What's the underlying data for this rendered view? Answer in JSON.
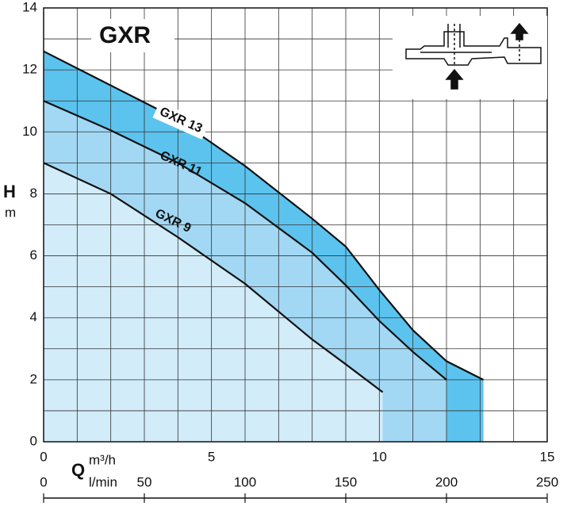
{
  "chart_data": {
    "type": "area-line",
    "title": "GXR",
    "y_label": "H",
    "y_unit": "m",
    "x_label": "Q",
    "x_unit": "m³/h",
    "x2_unit": "l/min",
    "xlim": [
      0,
      15
    ],
    "xticks": [
      0,
      5,
      10,
      15
    ],
    "x2lim": [
      0,
      250
    ],
    "x2ticks": [
      0,
      50,
      100,
      150,
      200,
      250
    ],
    "ylim": [
      0,
      14
    ],
    "yticks": [
      0,
      2,
      4,
      6,
      8,
      10,
      12,
      14
    ],
    "x_grid": [
      1,
      2,
      3,
      4,
      6,
      7,
      8,
      9,
      11,
      12,
      13,
      14
    ],
    "y_grid": [
      1,
      3,
      5,
      7,
      9,
      11,
      13
    ],
    "series": [
      {
        "name": "GXR 13",
        "color": "#5cc3ee",
        "x": [
          0,
          2,
          4,
          6,
          8,
          9,
          10,
          11,
          12,
          13.1
        ],
        "values": [
          12.6,
          11.5,
          10.4,
          8.9,
          7.2,
          6.3,
          4.9,
          3.6,
          2.6,
          2.0
        ]
      },
      {
        "name": "GXR 11",
        "color": "#a2d8f4",
        "x": [
          0,
          2,
          4,
          6,
          8,
          9,
          10,
          11,
          12
        ],
        "values": [
          11.0,
          10.05,
          9.0,
          7.7,
          6.1,
          5.05,
          3.9,
          2.9,
          2.0
        ]
      },
      {
        "name": "GXR 9",
        "color": "#d2ecf9",
        "x": [
          0,
          2,
          4,
          6,
          8,
          9,
          10.1
        ],
        "values": [
          9.0,
          8.0,
          6.6,
          5.1,
          3.3,
          2.5,
          1.6
        ]
      }
    ]
  }
}
